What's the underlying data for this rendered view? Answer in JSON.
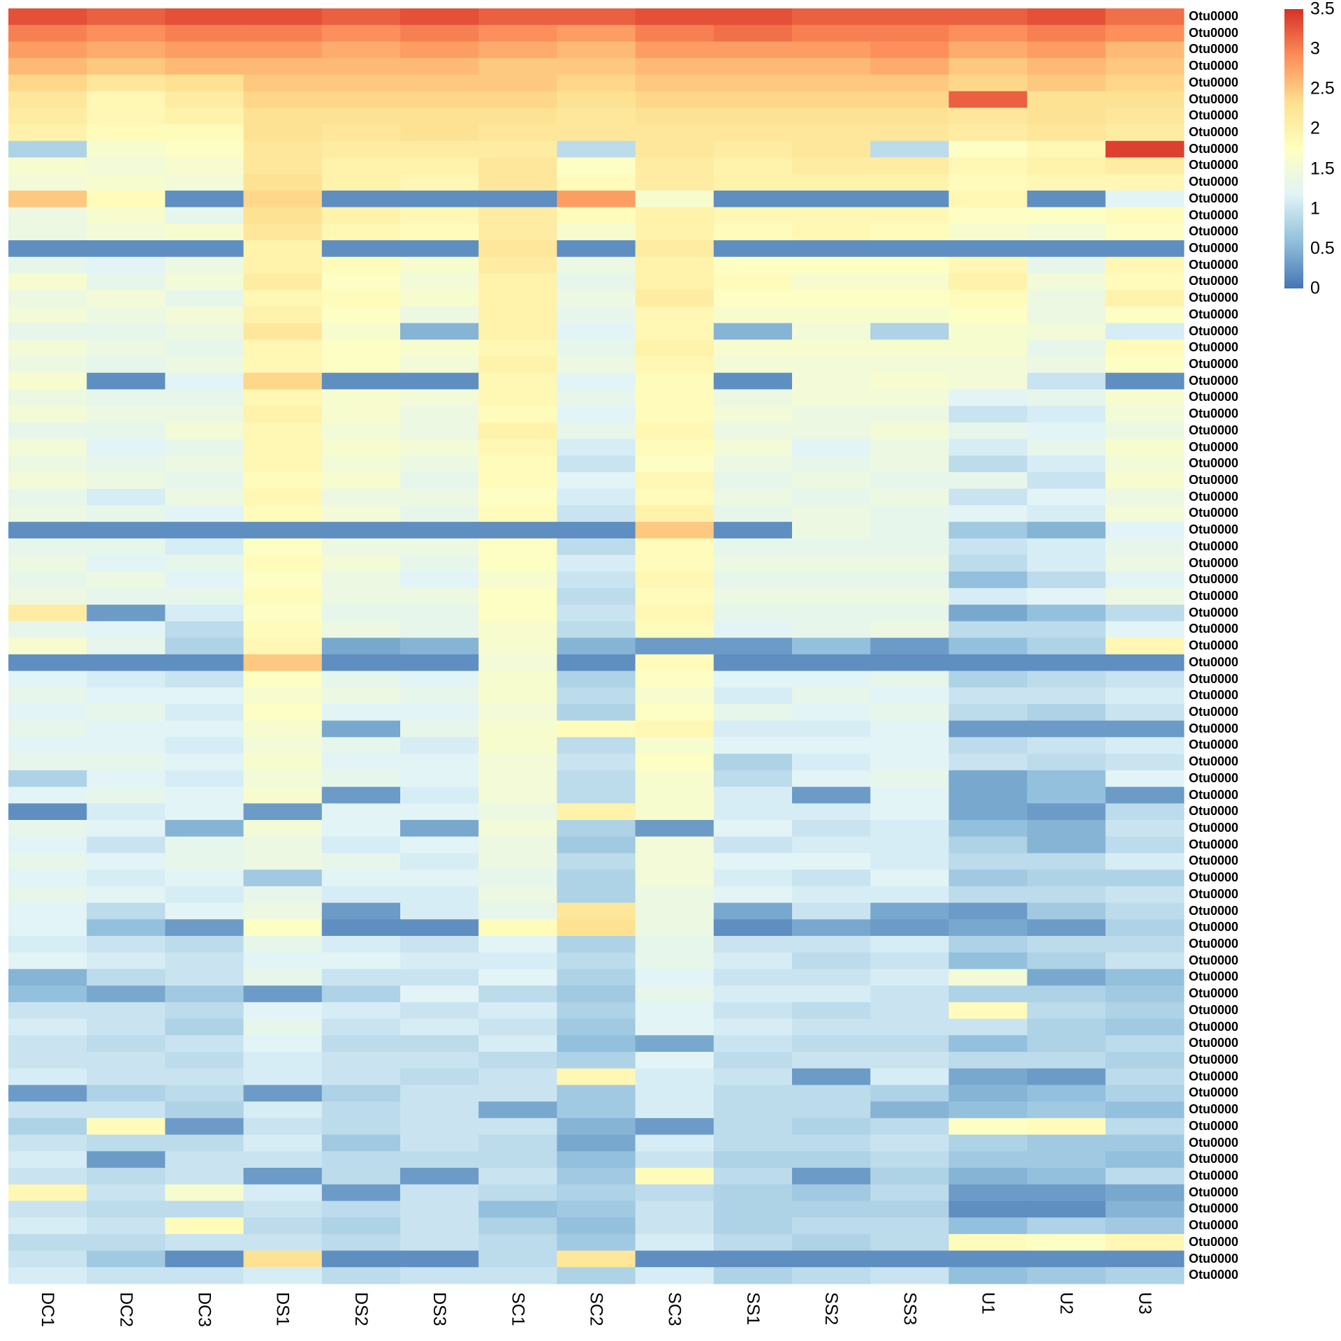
{
  "chart_data": {
    "type": "heatmap",
    "title": "",
    "columns": [
      "DC1",
      "DC2",
      "DC3",
      "DS1",
      "DS2",
      "DS3",
      "SC1",
      "SC2",
      "SC3",
      "SS1",
      "SS2",
      "SS3",
      "U1",
      "U2",
      "U3"
    ],
    "row_label_prefix": "Otu0000",
    "color_scale": {
      "range": [
        0,
        3.5
      ],
      "ticks": [
        "0",
        "0.5",
        "1",
        "1.5",
        "2",
        "2.5",
        "3",
        "3.5"
      ],
      "tick_values": [
        0,
        0.5,
        1,
        1.5,
        2,
        2.5,
        3,
        3.5
      ],
      "colors": [
        "#4575b4",
        "#91bfdb",
        "#e0f3f8",
        "#ffffbf",
        "#fee090",
        "#fc8d59",
        "#d73027"
      ]
    },
    "values": [
      [
        3.3,
        3.2,
        3.3,
        3.3,
        3.2,
        3.3,
        3.2,
        3.2,
        3.3,
        3.3,
        3.2,
        3.2,
        3.2,
        3.3,
        3.1
      ],
      [
        3.0,
        2.9,
        3.0,
        3.0,
        2.9,
        3.0,
        2.9,
        2.8,
        3.0,
        3.1,
        3.0,
        3.0,
        2.9,
        3.0,
        2.9
      ],
      [
        2.8,
        2.7,
        2.8,
        2.8,
        2.7,
        2.8,
        2.7,
        2.6,
        2.8,
        2.8,
        2.8,
        2.9,
        2.7,
        2.8,
        2.6
      ],
      [
        2.6,
        2.5,
        2.6,
        2.6,
        2.6,
        2.6,
        2.5,
        2.5,
        2.6,
        2.6,
        2.6,
        2.7,
        2.5,
        2.6,
        2.5
      ],
      [
        2.4,
        2.2,
        2.3,
        2.5,
        2.5,
        2.5,
        2.5,
        2.4,
        2.5,
        2.5,
        2.5,
        2.5,
        2.4,
        2.5,
        2.4
      ],
      [
        2.2,
        1.9,
        2.1,
        2.4,
        2.4,
        2.4,
        2.4,
        2.3,
        2.4,
        2.4,
        2.4,
        2.4,
        3.2,
        2.3,
        2.3
      ],
      [
        2.1,
        1.9,
        2.0,
        2.3,
        2.3,
        2.3,
        2.3,
        2.2,
        2.3,
        2.3,
        2.3,
        2.3,
        2.2,
        2.3,
        2.2
      ],
      [
        2.0,
        1.8,
        1.8,
        2.3,
        2.2,
        2.3,
        2.2,
        2.2,
        2.2,
        2.2,
        2.2,
        2.2,
        2.1,
        2.2,
        2.1
      ],
      [
        0.8,
        1.6,
        1.7,
        2.2,
        2.1,
        2.1,
        2.1,
        0.9,
        2.2,
        2.1,
        2.2,
        0.9,
        1.7,
        1.9,
        3.4
      ],
      [
        1.6,
        1.5,
        1.6,
        2.2,
        2.0,
        2.0,
        2.2,
        1.7,
        2.1,
        2.0,
        2.1,
        2.1,
        1.9,
        2.0,
        2.1
      ],
      [
        1.5,
        1.6,
        1.5,
        2.3,
        2.0,
        1.9,
        2.2,
        1.8,
        2.1,
        2.0,
        2.0,
        2.0,
        1.8,
        1.9,
        1.9
      ],
      [
        2.5,
        1.8,
        0.2,
        2.4,
        0.2,
        0.2,
        0.2,
        2.8,
        1.6,
        0.2,
        0.2,
        0.2,
        1.9,
        0.2,
        1.2
      ],
      [
        1.4,
        1.6,
        1.3,
        2.3,
        2.0,
        1.9,
        2.1,
        1.8,
        2.0,
        1.9,
        1.9,
        1.9,
        1.7,
        1.7,
        1.8
      ],
      [
        1.4,
        1.5,
        1.6,
        2.2,
        1.9,
        1.8,
        2.1,
        1.6,
        2.0,
        1.8,
        1.9,
        1.8,
        1.6,
        1.5,
        1.7
      ],
      [
        0.2,
        0.2,
        0.2,
        2.0,
        0.2,
        0.2,
        2.2,
        0.2,
        2.1,
        0.2,
        0.2,
        0.2,
        0.2,
        0.2,
        0.2
      ],
      [
        1.3,
        1.2,
        1.4,
        2.0,
        1.8,
        1.6,
        2.1,
        1.4,
        2.0,
        1.7,
        1.7,
        1.7,
        1.9,
        1.3,
        1.9
      ],
      [
        1.6,
        1.3,
        1.5,
        2.1,
        1.7,
        1.5,
        2.0,
        1.3,
        2.0,
        1.8,
        1.6,
        1.6,
        2.0,
        1.5,
        1.8
      ],
      [
        1.4,
        1.5,
        1.3,
        1.9,
        1.8,
        1.6,
        2.0,
        1.4,
        2.1,
        1.7,
        1.7,
        1.7,
        1.8,
        1.4,
        2.0
      ],
      [
        1.5,
        1.4,
        1.5,
        2.0,
        1.7,
        1.4,
        2.0,
        1.3,
        1.9,
        1.6,
        1.6,
        1.6,
        1.7,
        1.4,
        1.7
      ],
      [
        1.3,
        1.3,
        1.4,
        2.2,
        1.6,
        0.5,
        2.0,
        1.2,
        1.9,
        0.5,
        1.5,
        0.8,
        1.6,
        1.5,
        1.1
      ],
      [
        1.5,
        1.4,
        1.3,
        1.9,
        1.7,
        1.6,
        1.9,
        1.3,
        2.0,
        1.6,
        1.6,
        1.6,
        1.6,
        1.3,
        1.8
      ],
      [
        1.4,
        1.3,
        1.4,
        1.9,
        1.7,
        1.5,
        2.0,
        1.4,
        1.9,
        1.5,
        1.5,
        1.5,
        1.5,
        1.4,
        1.7
      ],
      [
        1.6,
        0.2,
        1.2,
        2.4,
        0.2,
        0.2,
        1.9,
        1.2,
        1.8,
        0.2,
        1.5,
        1.6,
        1.5,
        1.0,
        0.2
      ],
      [
        1.4,
        1.3,
        1.3,
        1.9,
        1.6,
        1.5,
        1.9,
        1.3,
        1.8,
        1.4,
        1.5,
        1.5,
        1.2,
        1.3,
        1.6
      ],
      [
        1.5,
        1.4,
        1.4,
        2.0,
        1.6,
        1.4,
        1.8,
        1.2,
        1.8,
        1.5,
        1.4,
        1.4,
        1.0,
        1.1,
        1.5
      ],
      [
        1.3,
        1.3,
        1.5,
        1.9,
        1.5,
        1.4,
        2.0,
        1.3,
        1.9,
        1.4,
        1.4,
        1.5,
        1.3,
        1.2,
        1.4
      ],
      [
        1.5,
        1.2,
        1.3,
        1.9,
        1.6,
        1.5,
        1.9,
        1.1,
        1.8,
        1.5,
        1.2,
        1.4,
        1.1,
        1.3,
        1.6
      ],
      [
        1.4,
        1.3,
        1.4,
        1.9,
        1.5,
        1.4,
        1.8,
        1.0,
        1.7,
        1.4,
        1.3,
        1.4,
        0.9,
        1.1,
        1.5
      ],
      [
        1.5,
        1.4,
        1.3,
        1.8,
        1.6,
        1.3,
        1.8,
        1.2,
        1.9,
        1.3,
        1.4,
        1.3,
        1.3,
        1.0,
        1.6
      ],
      [
        1.3,
        1.1,
        1.4,
        1.9,
        1.4,
        1.4,
        1.7,
        1.1,
        1.8,
        1.4,
        1.3,
        1.4,
        1.0,
        1.2,
        1.4
      ],
      [
        1.4,
        1.3,
        1.2,
        1.8,
        1.5,
        1.3,
        1.8,
        1.0,
        2.0,
        1.3,
        1.4,
        1.3,
        1.2,
        1.1,
        1.5
      ],
      [
        0.2,
        0.2,
        0.2,
        0.2,
        0.2,
        0.2,
        0.2,
        0.2,
        2.5,
        0.2,
        1.4,
        1.3,
        0.7,
        0.5,
        1.2
      ],
      [
        1.3,
        1.3,
        1.1,
        1.7,
        1.4,
        1.4,
        1.7,
        0.9,
        1.8,
        1.3,
        1.3,
        1.3,
        1.0,
        1.1,
        1.3
      ],
      [
        1.4,
        1.2,
        1.3,
        1.8,
        1.5,
        1.3,
        1.7,
        1.1,
        1.8,
        1.4,
        1.4,
        1.4,
        0.9,
        1.1,
        1.4
      ],
      [
        1.3,
        1.4,
        1.2,
        1.7,
        1.4,
        1.2,
        1.6,
        1.0,
        1.9,
        1.3,
        1.3,
        1.3,
        0.6,
        0.9,
        1.2
      ],
      [
        1.4,
        1.3,
        1.3,
        1.8,
        1.4,
        1.4,
        1.7,
        0.9,
        1.8,
        1.4,
        1.4,
        1.4,
        1.1,
        1.2,
        1.4
      ],
      [
        2.1,
        0.3,
        1.1,
        1.7,
        1.3,
        1.3,
        1.7,
        1.0,
        1.9,
        1.3,
        1.3,
        1.3,
        0.4,
        0.6,
        0.9
      ],
      [
        1.3,
        1.2,
        0.9,
        1.8,
        1.4,
        1.3,
        1.6,
        0.9,
        1.8,
        1.2,
        1.3,
        1.4,
        0.9,
        0.9,
        1.2
      ],
      [
        1.6,
        1.3,
        0.8,
        1.9,
        0.4,
        0.5,
        1.6,
        0.5,
        0.3,
        0.3,
        0.6,
        0.3,
        0.6,
        0.8,
        1.9
      ],
      [
        0.2,
        0.2,
        0.2,
        2.5,
        0.2,
        0.2,
        1.5,
        0.2,
        1.8,
        0.2,
        0.2,
        0.2,
        0.2,
        0.2,
        0.2
      ],
      [
        1.2,
        1.1,
        1.0,
        1.7,
        1.3,
        1.2,
        1.6,
        0.8,
        1.7,
        1.2,
        1.2,
        1.3,
        0.8,
        0.9,
        1.0
      ],
      [
        1.3,
        1.2,
        1.2,
        1.6,
        1.4,
        1.3,
        1.6,
        0.9,
        1.6,
        1.1,
        1.3,
        1.2,
        1.0,
        1.0,
        1.1
      ],
      [
        1.2,
        1.3,
        1.1,
        1.7,
        1.2,
        1.2,
        1.5,
        0.8,
        1.7,
        1.3,
        1.2,
        1.3,
        0.9,
        0.8,
        1.0
      ],
      [
        1.3,
        1.2,
        1.2,
        1.6,
        0.4,
        1.3,
        1.6,
        1.8,
        1.9,
        1.1,
        1.1,
        1.2,
        0.3,
        0.3,
        0.3
      ],
      [
        1.2,
        1.2,
        1.1,
        1.5,
        1.3,
        1.1,
        1.6,
        0.9,
        1.6,
        1.2,
        1.2,
        1.2,
        0.9,
        1.0,
        1.1
      ],
      [
        1.3,
        1.3,
        1.2,
        1.6,
        1.2,
        1.2,
        1.5,
        1.0,
        1.7,
        0.8,
        1.1,
        1.2,
        1.0,
        0.9,
        1.0
      ],
      [
        0.8,
        1.2,
        1.1,
        1.5,
        1.3,
        1.2,
        1.5,
        0.9,
        1.6,
        0.9,
        1.2,
        1.3,
        0.4,
        0.6,
        1.2
      ],
      [
        1.2,
        1.3,
        1.2,
        1.6,
        0.3,
        1.1,
        1.5,
        0.9,
        1.6,
        1.1,
        0.3,
        1.2,
        0.4,
        0.6,
        0.3
      ],
      [
        0.2,
        1.1,
        1.2,
        0.3,
        1.2,
        1.2,
        1.4,
        2.0,
        1.6,
        1.1,
        1.1,
        1.2,
        0.4,
        0.3,
        0.9
      ],
      [
        1.3,
        1.2,
        0.5,
        1.5,
        1.2,
        0.4,
        1.5,
        0.8,
        0.3,
        1.2,
        1.0,
        1.1,
        0.6,
        0.5,
        1.0
      ],
      [
        1.2,
        1.0,
        1.3,
        1.4,
        1.1,
        1.2,
        1.4,
        0.7,
        1.5,
        1.0,
        1.1,
        1.1,
        0.8,
        0.5,
        0.9
      ],
      [
        1.3,
        1.2,
        1.3,
        1.4,
        1.3,
        1.1,
        1.4,
        0.9,
        1.5,
        1.2,
        1.2,
        1.1,
        0.9,
        0.9,
        1.1
      ],
      [
        1.2,
        1.1,
        1.2,
        0.7,
        1.2,
        1.2,
        1.3,
        0.8,
        1.5,
        1.1,
        1.0,
        1.2,
        0.7,
        0.8,
        0.8
      ],
      [
        1.3,
        1.2,
        1.1,
        1.3,
        1.1,
        1.1,
        1.4,
        0.8,
        1.4,
        1.2,
        1.1,
        1.1,
        0.9,
        0.9,
        1.0
      ],
      [
        1.2,
        0.9,
        1.2,
        1.4,
        0.3,
        1.1,
        1.3,
        2.2,
        1.4,
        0.4,
        1.0,
        0.4,
        0.3,
        0.7,
        0.9
      ],
      [
        1.2,
        0.6,
        0.3,
        1.7,
        0.2,
        0.2,
        1.8,
        2.3,
        1.4,
        0.2,
        0.4,
        0.3,
        0.4,
        0.3,
        0.8
      ],
      [
        1.1,
        1.0,
        0.9,
        1.3,
        1.1,
        1.0,
        1.2,
        0.8,
        1.3,
        1.0,
        1.0,
        1.1,
        0.8,
        0.9,
        0.9
      ],
      [
        1.2,
        1.1,
        1.0,
        1.2,
        1.2,
        1.1,
        1.1,
        0.9,
        1.3,
        1.1,
        0.9,
        1.0,
        0.6,
        0.8,
        1.0
      ],
      [
        0.5,
        0.9,
        1.0,
        1.3,
        1.0,
        1.0,
        1.2,
        0.8,
        1.2,
        1.0,
        1.0,
        1.1,
        1.5,
        0.4,
        0.6
      ],
      [
        0.6,
        0.4,
        0.7,
        0.3,
        0.8,
        1.2,
        0.9,
        0.7,
        1.3,
        1.1,
        1.1,
        1.0,
        0.8,
        0.8,
        0.7
      ],
      [
        1.0,
        1.0,
        0.9,
        1.2,
        1.1,
        1.0,
        1.1,
        0.8,
        1.2,
        1.0,
        0.9,
        1.0,
        1.8,
        0.9,
        0.8
      ],
      [
        1.1,
        1.0,
        0.8,
        1.3,
        1.0,
        1.1,
        1.0,
        0.7,
        1.2,
        1.1,
        1.0,
        1.0,
        1.0,
        0.8,
        0.7
      ],
      [
        1.0,
        0.9,
        1.0,
        1.2,
        0.9,
        0.9,
        1.1,
        0.6,
        0.4,
        1.0,
        0.9,
        0.9,
        0.6,
        0.8,
        0.9
      ],
      [
        1.0,
        1.0,
        0.9,
        1.1,
        1.0,
        1.0,
        0.9,
        0.8,
        1.2,
        0.9,
        1.0,
        1.0,
        0.9,
        0.9,
        0.8
      ],
      [
        1.1,
        1.0,
        1.0,
        1.1,
        1.0,
        0.9,
        1.0,
        1.9,
        1.1,
        1.0,
        0.3,
        1.1,
        0.4,
        0.3,
        0.9
      ],
      [
        0.3,
        0.8,
        0.9,
        0.3,
        0.8,
        1.0,
        1.0,
        0.7,
        1.1,
        0.9,
        0.9,
        0.8,
        0.5,
        0.6,
        0.8
      ],
      [
        1.0,
        1.0,
        0.8,
        1.1,
        0.9,
        1.0,
        0.4,
        0.7,
        1.1,
        0.9,
        0.9,
        0.5,
        0.6,
        0.7,
        0.6
      ],
      [
        0.8,
        1.8,
        0.3,
        1.0,
        0.9,
        1.0,
        1.0,
        0.5,
        0.3,
        0.9,
        0.8,
        0.9,
        1.7,
        1.8,
        0.9
      ],
      [
        1.0,
        0.9,
        0.9,
        1.1,
        0.7,
        1.0,
        0.9,
        0.4,
        1.1,
        0.9,
        0.9,
        1.0,
        0.8,
        0.7,
        0.7
      ],
      [
        1.1,
        0.3,
        1.0,
        1.0,
        0.9,
        0.9,
        0.9,
        0.6,
        1.0,
        0.8,
        0.8,
        0.9,
        0.7,
        0.7,
        0.6
      ],
      [
        1.0,
        0.9,
        1.0,
        0.3,
        0.9,
        0.3,
        1.0,
        0.7,
        1.8,
        0.9,
        0.3,
        0.8,
        0.5,
        0.6,
        0.9
      ],
      [
        1.9,
        1.0,
        1.6,
        1.1,
        0.3,
        1.0,
        0.9,
        0.8,
        0.9,
        0.8,
        0.7,
        0.9,
        0.3,
        0.3,
        0.4
      ],
      [
        1.0,
        0.9,
        0.9,
        1.0,
        0.9,
        1.0,
        0.6,
        0.7,
        1.0,
        0.8,
        0.8,
        0.8,
        0.2,
        0.2,
        0.5
      ],
      [
        1.1,
        1.0,
        1.8,
        0.9,
        0.8,
        1.0,
        0.8,
        0.6,
        1.0,
        0.8,
        0.9,
        0.9,
        0.6,
        0.8,
        0.7
      ],
      [
        0.9,
        0.9,
        1.0,
        1.0,
        0.9,
        1.0,
        0.9,
        0.7,
        1.1,
        0.9,
        0.8,
        0.9,
        1.8,
        1.7,
        1.9
      ],
      [
        1.0,
        0.7,
        0.2,
        2.3,
        0.2,
        0.2,
        0.9,
        2.2,
        0.2,
        0.2,
        0.2,
        0.2,
        0.2,
        0.2,
        0.2
      ],
      [
        1.1,
        1.0,
        1.0,
        1.1,
        0.9,
        1.0,
        1.0,
        0.8,
        1.1,
        0.8,
        0.9,
        1.0,
        0.6,
        0.7,
        0.8
      ]
    ]
  }
}
